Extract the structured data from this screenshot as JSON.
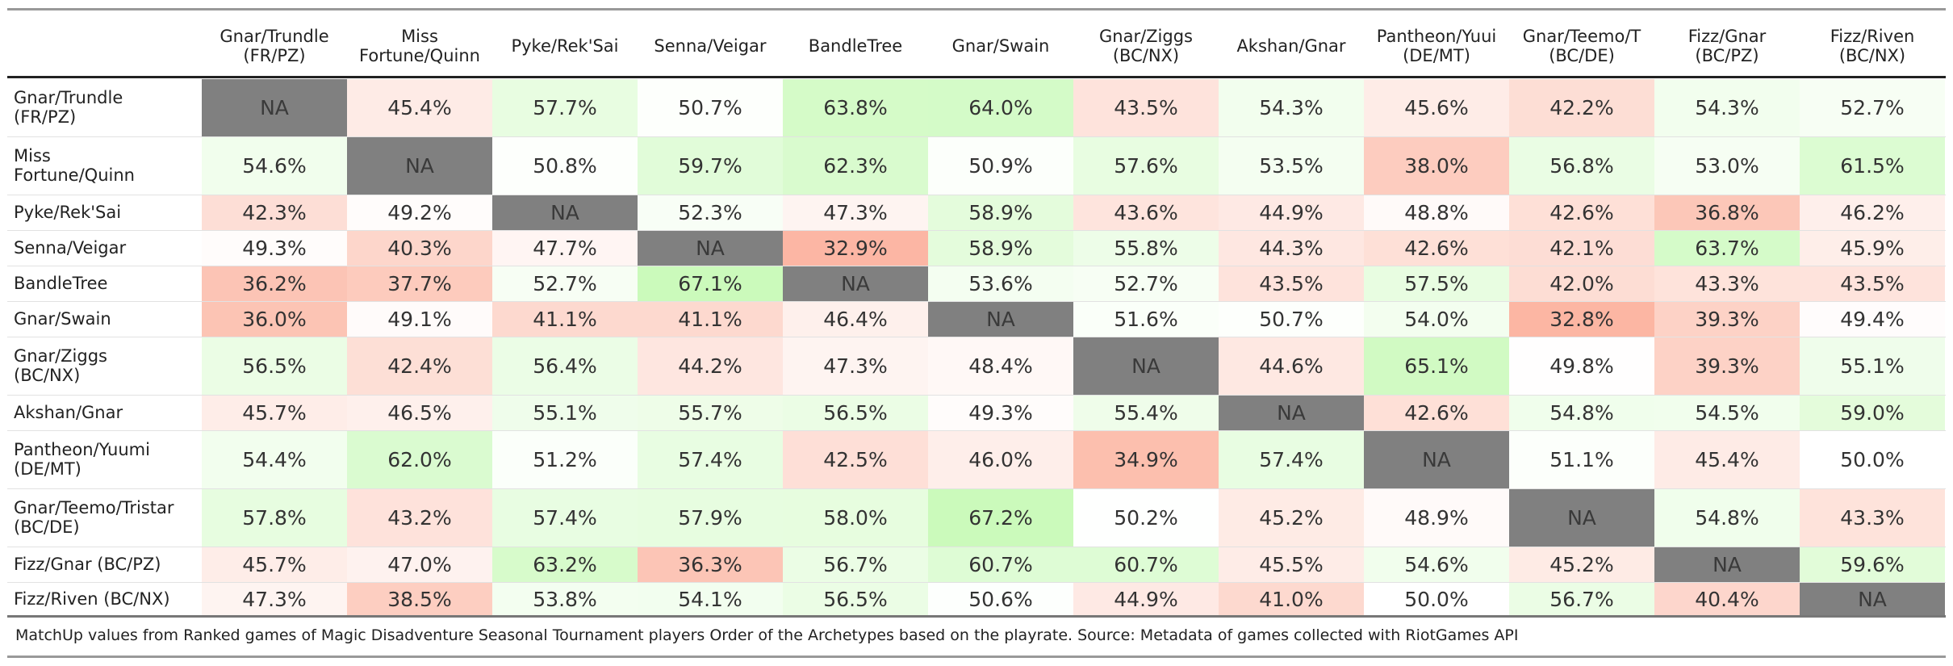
{
  "chart_data": {
    "type": "heatmap",
    "value_format": "percent",
    "na_label": "NA",
    "colors": {
      "low": "#fbaa94",
      "mid": "#ffffff",
      "high": "#c2f9b0",
      "na": "#808080"
    },
    "color_domain": [
      30,
      50,
      70
    ],
    "columns": [
      "Gnar/Trundle\n(FR/PZ)",
      "Miss\nFortune/Quinn",
      "Pyke/Rek'Sai",
      "Senna/Veigar",
      "BandleTree",
      "Gnar/Swain",
      "Gnar/Ziggs\n(BC/NX)",
      "Akshan/Gnar",
      "Pantheon/Yuui\n(DE/MT)",
      "Gnar/Teemo/T\n(BC/DE)",
      "Fizz/Gnar\n(BC/PZ)",
      "Fizz/Riven\n(BC/NX)"
    ],
    "rows": [
      "Gnar/Trundle\n(FR/PZ)",
      "Miss\nFortune/Quinn",
      "Pyke/Rek'Sai",
      "Senna/Veigar",
      "BandleTree",
      "Gnar/Swain",
      "Gnar/Ziggs\n(BC/NX)",
      "Akshan/Gnar",
      "Pantheon/Yuumi\n(DE/MT)",
      "Gnar/Teemo/Tristar\n(BC/DE)",
      "Fizz/Gnar (BC/PZ)",
      "Fizz/Riven (BC/NX)"
    ],
    "values": [
      [
        null,
        45.4,
        57.7,
        50.7,
        63.8,
        64.0,
        43.5,
        54.3,
        45.6,
        42.2,
        54.3,
        52.7
      ],
      [
        54.6,
        null,
        50.8,
        59.7,
        62.3,
        50.9,
        57.6,
        53.5,
        38.0,
        56.8,
        53.0,
        61.5
      ],
      [
        42.3,
        49.2,
        null,
        52.3,
        47.3,
        58.9,
        43.6,
        44.9,
        48.8,
        42.6,
        36.8,
        46.2
      ],
      [
        49.3,
        40.3,
        47.7,
        null,
        32.9,
        58.9,
        55.8,
        44.3,
        42.6,
        42.1,
        63.7,
        45.9
      ],
      [
        36.2,
        37.7,
        52.7,
        67.1,
        null,
        53.6,
        52.7,
        43.5,
        57.5,
        42.0,
        43.3,
        43.5
      ],
      [
        36.0,
        49.1,
        41.1,
        41.1,
        46.4,
        null,
        51.6,
        50.7,
        54.0,
        32.8,
        39.3,
        49.4
      ],
      [
        56.5,
        42.4,
        56.4,
        44.2,
        47.3,
        48.4,
        null,
        44.6,
        65.1,
        49.8,
        39.3,
        55.1
      ],
      [
        45.7,
        46.5,
        55.1,
        55.7,
        56.5,
        49.3,
        55.4,
        null,
        42.6,
        54.8,
        54.5,
        59.0
      ],
      [
        54.4,
        62.0,
        51.2,
        57.4,
        42.5,
        46.0,
        34.9,
        57.4,
        null,
        51.1,
        45.4,
        50.0
      ],
      [
        57.8,
        43.2,
        57.4,
        57.9,
        58.0,
        67.2,
        50.2,
        45.2,
        48.9,
        null,
        54.8,
        43.3
      ],
      [
        45.7,
        47.0,
        63.2,
        36.3,
        56.7,
        60.7,
        60.7,
        45.5,
        54.6,
        45.2,
        null,
        59.6
      ],
      [
        47.3,
        38.5,
        53.8,
        54.1,
        56.5,
        50.6,
        44.9,
        41.0,
        50.0,
        56.7,
        40.4,
        null
      ]
    ],
    "caption": "MatchUp values from Ranked games of Magic Disadventure Seasonal Tournament players Order of the Archetypes based on the playrate. Source: Metadata of games collected with RiotGames API"
  }
}
